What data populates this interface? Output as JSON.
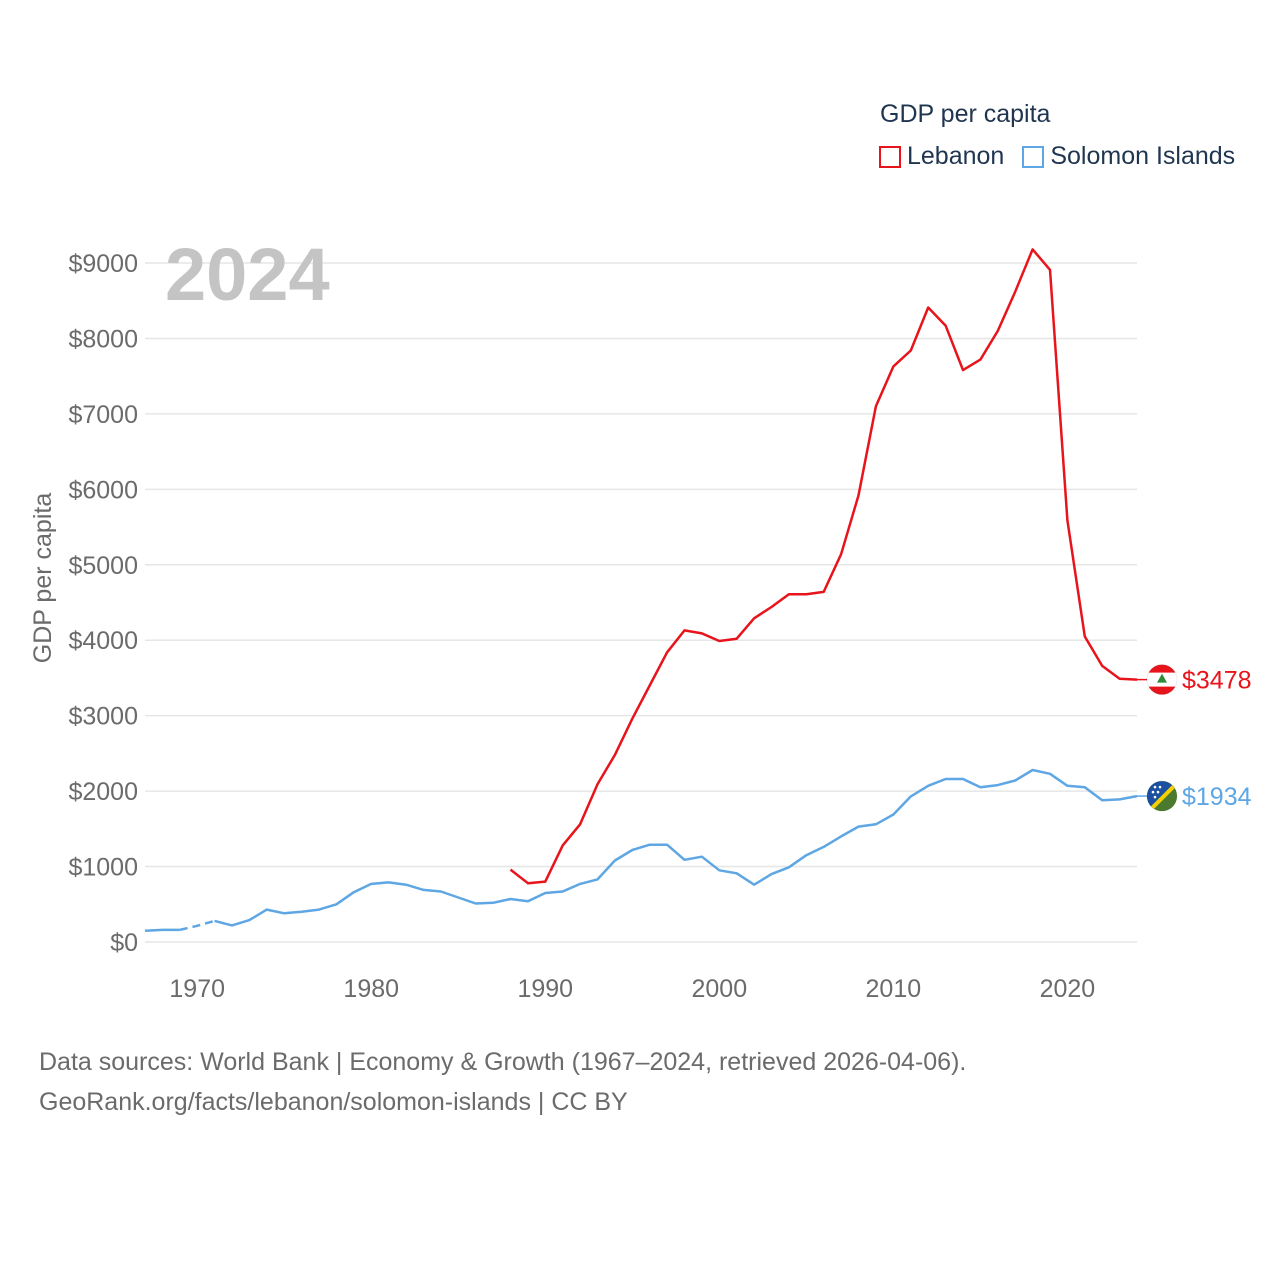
{
  "legend": {
    "title": "GDP per capita",
    "items": [
      {
        "label": "Lebanon",
        "color": "#e8141c"
      },
      {
        "label": "Solomon Islands",
        "color": "#5ea6e4"
      }
    ]
  },
  "source": {
    "line1": "Data sources: World Bank | Economy & Growth (1967–2024, retrieved 2026-04-06).",
    "line2": "GeoRank.org/facts/lebanon/solomon-islands | CC BY"
  },
  "chart_data": {
    "type": "line",
    "title": "GDP per capita",
    "year_label": "2024",
    "ylabel": "GDP per capita",
    "xlabel": "",
    "xlim": [
      1967,
      2024
    ],
    "ylim": [
      0,
      9000
    ],
    "x_ticks": [
      1970,
      1980,
      1990,
      2000,
      2010,
      2020
    ],
    "y_ticks": [
      {
        "value": 0,
        "label": "$0"
      },
      {
        "value": 1000,
        "label": "$1000"
      },
      {
        "value": 2000,
        "label": "$2000"
      },
      {
        "value": 3000,
        "label": "$3000"
      },
      {
        "value": 4000,
        "label": "$4000"
      },
      {
        "value": 5000,
        "label": "$5000"
      },
      {
        "value": 6000,
        "label": "$6000"
      },
      {
        "value": 7000,
        "label": "$7000"
      },
      {
        "value": 8000,
        "label": "$8000"
      },
      {
        "value": 9000,
        "label": "$9000"
      }
    ],
    "grid": true,
    "legend_position": "top-right",
    "series": [
      {
        "name": "Lebanon",
        "color": "#e8141c",
        "end_label": "$3478",
        "end_value": 3478,
        "flag": "lebanon-flag-icon",
        "points": [
          [
            1988,
            960
          ],
          [
            1989,
            780
          ],
          [
            1990,
            800
          ],
          [
            1991,
            1280
          ],
          [
            1992,
            1560
          ],
          [
            1993,
            2090
          ],
          [
            1994,
            2480
          ],
          [
            1995,
            2960
          ],
          [
            1996,
            3400
          ],
          [
            1997,
            3840
          ],
          [
            1998,
            4130
          ],
          [
            1999,
            4090
          ],
          [
            2000,
            3990
          ],
          [
            2001,
            4020
          ],
          [
            2002,
            4290
          ],
          [
            2003,
            4440
          ],
          [
            2004,
            4610
          ],
          [
            2005,
            4610
          ],
          [
            2006,
            4640
          ],
          [
            2007,
            5140
          ],
          [
            2008,
            5920
          ],
          [
            2009,
            7100
          ],
          [
            2010,
            7630
          ],
          [
            2011,
            7840
          ],
          [
            2012,
            8410
          ],
          [
            2013,
            8170
          ],
          [
            2014,
            7580
          ],
          [
            2015,
            7720
          ],
          [
            2016,
            8100
          ],
          [
            2017,
            8620
          ],
          [
            2018,
            9180
          ],
          [
            2019,
            8910
          ],
          [
            2020,
            5590
          ],
          [
            2021,
            4050
          ],
          [
            2022,
            3660
          ],
          [
            2023,
            3490
          ],
          [
            2024,
            3478
          ]
        ]
      },
      {
        "name": "Solomon Islands",
        "color": "#5ea6e4",
        "end_label": "$1934",
        "end_value": 1934,
        "flag": "solomon-islands-flag-icon",
        "points": [
          [
            1967,
            150
          ],
          [
            1968,
            160
          ],
          [
            1969,
            160
          ],
          [
            1970,
            215
          ],
          [
            1971,
            280
          ],
          [
            1972,
            220
          ],
          [
            1973,
            290
          ],
          [
            1974,
            430
          ],
          [
            1975,
            380
          ],
          [
            1976,
            400
          ],
          [
            1977,
            430
          ],
          [
            1978,
            500
          ],
          [
            1979,
            660
          ],
          [
            1980,
            770
          ],
          [
            1981,
            790
          ],
          [
            1982,
            760
          ],
          [
            1983,
            690
          ],
          [
            1984,
            670
          ],
          [
            1985,
            590
          ],
          [
            1986,
            510
          ],
          [
            1987,
            520
          ],
          [
            1988,
            570
          ],
          [
            1989,
            540
          ],
          [
            1990,
            650
          ],
          [
            1991,
            670
          ],
          [
            1992,
            770
          ],
          [
            1993,
            830
          ],
          [
            1994,
            1080
          ],
          [
            1995,
            1220
          ],
          [
            1996,
            1290
          ],
          [
            1997,
            1290
          ],
          [
            1998,
            1090
          ],
          [
            1999,
            1130
          ],
          [
            2000,
            950
          ],
          [
            2001,
            910
          ],
          [
            2002,
            760
          ],
          [
            2003,
            900
          ],
          [
            2004,
            990
          ],
          [
            2005,
            1150
          ],
          [
            2006,
            1260
          ],
          [
            2007,
            1400
          ],
          [
            2008,
            1530
          ],
          [
            2009,
            1560
          ],
          [
            2010,
            1690
          ],
          [
            2011,
            1930
          ],
          [
            2012,
            2070
          ],
          [
            2013,
            2160
          ],
          [
            2014,
            2160
          ],
          [
            2015,
            2050
          ],
          [
            2016,
            2080
          ],
          [
            2017,
            2140
          ],
          [
            2018,
            2280
          ],
          [
            2019,
            2230
          ],
          [
            2020,
            2070
          ],
          [
            2021,
            2050
          ],
          [
            2022,
            1880
          ],
          [
            2023,
            1890
          ],
          [
            2024,
            1934
          ]
        ],
        "dashed_range": [
          1969,
          1971
        ]
      }
    ]
  }
}
